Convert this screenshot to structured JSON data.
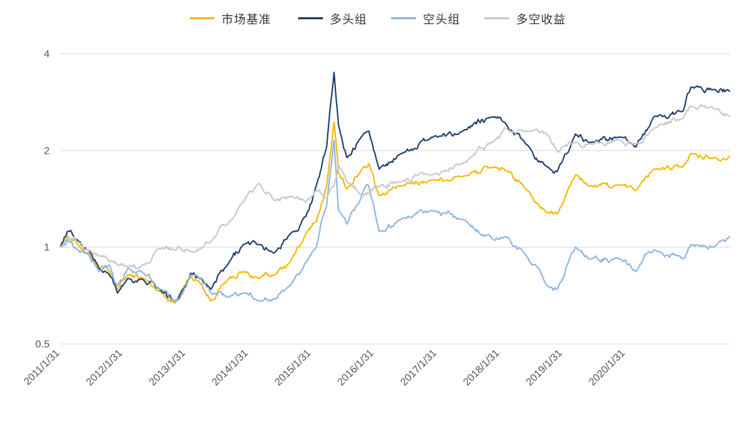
{
  "chart_data": {
    "type": "line",
    "title": "",
    "xlabel": "",
    "ylabel": "",
    "y_scale": "log",
    "ylim": [
      0.5,
      4
    ],
    "y_ticks": [
      0.5,
      1,
      2,
      4
    ],
    "y_tick_labels": [
      "0.5",
      "1",
      "2",
      "4"
    ],
    "x_range": [
      "2011-01-31",
      "2021-09-30"
    ],
    "x_ticks": [
      "2011-01-31",
      "2012-01-31",
      "2013-01-31",
      "2014-01-31",
      "2015-01-31",
      "2016-01-31",
      "2017-01-31",
      "2018-01-31",
      "2019-01-31",
      "2020-01-31"
    ],
    "x_tick_labels": [
      "2011/1/31",
      "2012/1/31",
      "2013/1/31",
      "2014/1/31",
      "2015/1/31",
      "2016/1/31",
      "2017/1/31",
      "2018/1/31",
      "2019/1/31",
      "2020/1/31"
    ],
    "grid": "horizontal",
    "legend_position": "top-center",
    "series": [
      {
        "name": "市场基准",
        "color": "#F5B800",
        "points": [
          [
            "2011-01-31",
            1.0
          ],
          [
            "2011-03-15",
            1.08
          ],
          [
            "2011-05-15",
            1.02
          ],
          [
            "2011-07-15",
            0.96
          ],
          [
            "2011-09-15",
            0.86
          ],
          [
            "2011-11-15",
            0.84
          ],
          [
            "2011-12-31",
            0.74
          ],
          [
            "2012-02-28",
            0.82
          ],
          [
            "2012-05-31",
            0.8
          ],
          [
            "2012-08-31",
            0.73
          ],
          [
            "2012-11-30",
            0.67
          ],
          [
            "2012-12-31",
            0.71
          ],
          [
            "2013-02-28",
            0.81
          ],
          [
            "2013-04-30",
            0.77
          ],
          [
            "2013-06-25",
            0.68
          ],
          [
            "2013-09-30",
            0.79
          ],
          [
            "2013-12-31",
            0.84
          ],
          [
            "2014-03-31",
            0.8
          ],
          [
            "2014-06-30",
            0.82
          ],
          [
            "2014-09-30",
            0.9
          ],
          [
            "2014-12-31",
            1.1
          ],
          [
            "2015-02-28",
            1.2
          ],
          [
            "2015-04-30",
            1.55
          ],
          [
            "2015-06-12",
            2.45
          ],
          [
            "2015-07-08",
            1.7
          ],
          [
            "2015-08-26",
            1.52
          ],
          [
            "2015-11-30",
            1.78
          ],
          [
            "2015-12-31",
            1.82
          ],
          [
            "2016-02-29",
            1.45
          ],
          [
            "2016-06-30",
            1.55
          ],
          [
            "2016-12-31",
            1.62
          ],
          [
            "2017-06-30",
            1.66
          ],
          [
            "2017-12-31",
            1.78
          ],
          [
            "2018-02-28",
            1.74
          ],
          [
            "2018-06-30",
            1.52
          ],
          [
            "2018-10-31",
            1.28
          ],
          [
            "2018-12-31",
            1.27
          ],
          [
            "2019-04-15",
            1.68
          ],
          [
            "2019-06-30",
            1.55
          ],
          [
            "2019-12-31",
            1.56
          ],
          [
            "2020-03-31",
            1.5
          ],
          [
            "2020-07-15",
            1.75
          ],
          [
            "2020-12-31",
            1.78
          ],
          [
            "2021-02-15",
            1.96
          ],
          [
            "2021-06-30",
            1.9
          ],
          [
            "2021-09-30",
            1.92
          ]
        ]
      },
      {
        "name": "多头组",
        "color": "#1F3D6B",
        "points": [
          [
            "2011-01-31",
            1.0
          ],
          [
            "2011-03-15",
            1.12
          ],
          [
            "2011-05-15",
            1.05
          ],
          [
            "2011-07-15",
            0.98
          ],
          [
            "2011-09-15",
            0.86
          ],
          [
            "2011-11-15",
            0.82
          ],
          [
            "2011-12-31",
            0.72
          ],
          [
            "2012-02-28",
            0.8
          ],
          [
            "2012-05-31",
            0.79
          ],
          [
            "2012-08-31",
            0.74
          ],
          [
            "2012-11-30",
            0.68
          ],
          [
            "2012-12-31",
            0.72
          ],
          [
            "2013-02-28",
            0.83
          ],
          [
            "2013-04-30",
            0.8
          ],
          [
            "2013-06-25",
            0.74
          ],
          [
            "2013-09-30",
            0.88
          ],
          [
            "2013-12-31",
            1.02
          ],
          [
            "2014-03-31",
            1.02
          ],
          [
            "2014-06-30",
            0.96
          ],
          [
            "2014-09-30",
            1.1
          ],
          [
            "2014-12-31",
            1.25
          ],
          [
            "2015-02-28",
            1.55
          ],
          [
            "2015-04-30",
            2.05
          ],
          [
            "2015-06-12",
            3.5
          ],
          [
            "2015-07-08",
            2.4
          ],
          [
            "2015-08-26",
            1.9
          ],
          [
            "2015-11-30",
            2.25
          ],
          [
            "2015-12-31",
            2.3
          ],
          [
            "2016-02-29",
            1.75
          ],
          [
            "2016-06-30",
            1.95
          ],
          [
            "2016-12-31",
            2.2
          ],
          [
            "2017-06-30",
            2.3
          ],
          [
            "2017-12-31",
            2.55
          ],
          [
            "2018-02-28",
            2.45
          ],
          [
            "2018-06-30",
            2.1
          ],
          [
            "2018-10-31",
            1.78
          ],
          [
            "2018-12-31",
            1.72
          ],
          [
            "2019-04-15",
            2.25
          ],
          [
            "2019-06-30",
            2.12
          ],
          [
            "2019-12-31",
            2.2
          ],
          [
            "2020-03-31",
            2.05
          ],
          [
            "2020-07-15",
            2.55
          ],
          [
            "2020-12-31",
            2.65
          ],
          [
            "2021-02-15",
            3.15
          ],
          [
            "2021-06-30",
            3.1
          ],
          [
            "2021-09-30",
            3.05
          ]
        ]
      },
      {
        "name": "空头组",
        "color": "#8EB4E3",
        "points": [
          [
            "2011-01-31",
            1.0
          ],
          [
            "2011-03-15",
            1.05
          ],
          [
            "2011-05-15",
            0.98
          ],
          [
            "2011-07-15",
            0.95
          ],
          [
            "2011-09-15",
            0.84
          ],
          [
            "2011-11-15",
            0.88
          ],
          [
            "2011-12-31",
            0.76
          ],
          [
            "2012-02-28",
            0.86
          ],
          [
            "2012-05-31",
            0.83
          ],
          [
            "2012-08-31",
            0.74
          ],
          [
            "2012-11-30",
            0.68
          ],
          [
            "2012-12-31",
            0.7
          ],
          [
            "2013-02-28",
            0.82
          ],
          [
            "2013-04-30",
            0.8
          ],
          [
            "2013-06-25",
            0.72
          ],
          [
            "2013-09-30",
            0.7
          ],
          [
            "2013-12-31",
            0.72
          ],
          [
            "2014-03-31",
            0.68
          ],
          [
            "2014-06-30",
            0.69
          ],
          [
            "2014-09-30",
            0.76
          ],
          [
            "2014-12-31",
            0.9
          ],
          [
            "2015-02-28",
            1.0
          ],
          [
            "2015-04-30",
            1.35
          ],
          [
            "2015-06-12",
            2.15
          ],
          [
            "2015-07-08",
            1.3
          ],
          [
            "2015-08-26",
            1.18
          ],
          [
            "2015-11-30",
            1.5
          ],
          [
            "2015-12-31",
            1.55
          ],
          [
            "2016-02-29",
            1.12
          ],
          [
            "2016-06-30",
            1.22
          ],
          [
            "2016-12-31",
            1.3
          ],
          [
            "2017-06-30",
            1.22
          ],
          [
            "2017-12-31",
            1.05
          ],
          [
            "2018-02-28",
            1.08
          ],
          [
            "2018-06-30",
            0.95
          ],
          [
            "2018-10-31",
            0.76
          ],
          [
            "2018-12-31",
            0.74
          ],
          [
            "2019-04-15",
            1.0
          ],
          [
            "2019-06-30",
            0.92
          ],
          [
            "2019-12-31",
            0.92
          ],
          [
            "2020-03-31",
            0.84
          ],
          [
            "2020-07-15",
            0.98
          ],
          [
            "2020-12-31",
            0.92
          ],
          [
            "2021-02-15",
            1.02
          ],
          [
            "2021-06-30",
            1.0
          ],
          [
            "2021-09-30",
            1.08
          ]
        ]
      },
      {
        "name": "多空收益",
        "color": "#C8C8C8",
        "points": [
          [
            "2011-01-31",
            1.0
          ],
          [
            "2011-03-15",
            1.06
          ],
          [
            "2011-05-15",
            1.04
          ],
          [
            "2011-07-15",
            0.98
          ],
          [
            "2011-09-15",
            0.94
          ],
          [
            "2011-11-15",
            0.9
          ],
          [
            "2011-12-31",
            0.88
          ],
          [
            "2012-02-28",
            0.87
          ],
          [
            "2012-05-31",
            0.88
          ],
          [
            "2012-08-31",
            0.99
          ],
          [
            "2012-11-30",
            0.98
          ],
          [
            "2012-12-31",
            0.99
          ],
          [
            "2013-02-28",
            0.97
          ],
          [
            "2013-04-30",
            0.99
          ],
          [
            "2013-06-25",
            1.04
          ],
          [
            "2013-09-30",
            1.18
          ],
          [
            "2013-12-31",
            1.38
          ],
          [
            "2014-03-31",
            1.58
          ],
          [
            "2014-06-30",
            1.4
          ],
          [
            "2014-09-30",
            1.44
          ],
          [
            "2014-12-31",
            1.38
          ],
          [
            "2015-02-28",
            1.5
          ],
          [
            "2015-04-30",
            1.42
          ],
          [
            "2015-06-12",
            1.55
          ],
          [
            "2015-07-08",
            1.8
          ],
          [
            "2015-08-26",
            1.6
          ],
          [
            "2015-11-30",
            1.45
          ],
          [
            "2015-12-31",
            1.47
          ],
          [
            "2016-02-29",
            1.55
          ],
          [
            "2016-06-30",
            1.6
          ],
          [
            "2016-12-31",
            1.68
          ],
          [
            "2017-06-30",
            1.82
          ],
          [
            "2017-12-31",
            2.15
          ],
          [
            "2018-02-28",
            2.35
          ],
          [
            "2018-06-30",
            2.3
          ],
          [
            "2018-10-31",
            2.25
          ],
          [
            "2018-12-31",
            1.98
          ],
          [
            "2019-04-15",
            2.12
          ],
          [
            "2019-06-30",
            2.1
          ],
          [
            "2019-12-31",
            2.15
          ],
          [
            "2020-03-31",
            2.1
          ],
          [
            "2020-07-15",
            2.35
          ],
          [
            "2020-12-31",
            2.52
          ],
          [
            "2021-02-15",
            2.75
          ],
          [
            "2021-06-30",
            2.7
          ],
          [
            "2021-09-30",
            2.55
          ]
        ]
      }
    ]
  }
}
